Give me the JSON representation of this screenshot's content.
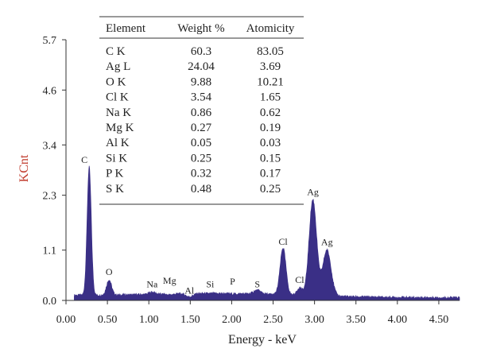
{
  "chart_data": {
    "type": "area",
    "title": "",
    "xlabel": "Energy - keV",
    "ylabel": "KCnt",
    "xlim": [
      0.0,
      4.75
    ],
    "ylim": [
      0.0,
      5.7
    ],
    "x_ticks": [
      "0.00",
      "0.50",
      "1.00",
      "1.50",
      "2.00",
      "2.50",
      "3.00",
      "3.50",
      "4.00",
      "4.50"
    ],
    "y_ticks": [
      "0.0",
      "1.1",
      "2.3",
      "3.4",
      "4.6",
      "5.7"
    ],
    "colors": {
      "spectrum": "#3a2f86",
      "ylabel": "#c0392b",
      "axis": "#333333"
    },
    "peaks": [
      {
        "label": "C",
        "energy": 0.28,
        "height": 2.9
      },
      {
        "label": "O",
        "energy": 0.52,
        "height": 0.45
      },
      {
        "label": "Na",
        "energy": 1.04,
        "height": 0.18
      },
      {
        "label": "Mg",
        "energy": 1.25,
        "height": 0.12
      },
      {
        "label": "Al",
        "energy": 1.49,
        "height": 0.08
      },
      {
        "label": "Si",
        "energy": 1.74,
        "height": 0.15
      },
      {
        "label": "P",
        "energy": 2.01,
        "height": 0.14
      },
      {
        "label": "S",
        "energy": 2.31,
        "height": 0.22
      },
      {
        "label": "Cl",
        "energy": 2.62,
        "height": 1.15
      },
      {
        "label": "Cl",
        "energy": 2.82,
        "height": 0.28
      },
      {
        "label": "Ag",
        "energy": 2.98,
        "height": 2.2
      },
      {
        "label": "Ag",
        "energy": 3.15,
        "height": 1.1
      }
    ],
    "table": {
      "headers": [
        "Element",
        "Weight %",
        "Atomicity"
      ],
      "rows": [
        [
          "C K",
          "60.3",
          "83.05"
        ],
        [
          "Ag L",
          "24.04",
          "3.69"
        ],
        [
          "O K",
          "9.88",
          "10.21"
        ],
        [
          "Cl K",
          "3.54",
          "1.65"
        ],
        [
          "Na K",
          "0.86",
          "0.62"
        ],
        [
          "Mg K",
          "0.27",
          "0.19"
        ],
        [
          "Al K",
          "0.05",
          "0.03"
        ],
        [
          "Si K",
          "0.25",
          "0.15"
        ],
        [
          "P K",
          "0.32",
          "0.17"
        ],
        [
          "S K",
          "0.48",
          "0.25"
        ]
      ]
    }
  }
}
